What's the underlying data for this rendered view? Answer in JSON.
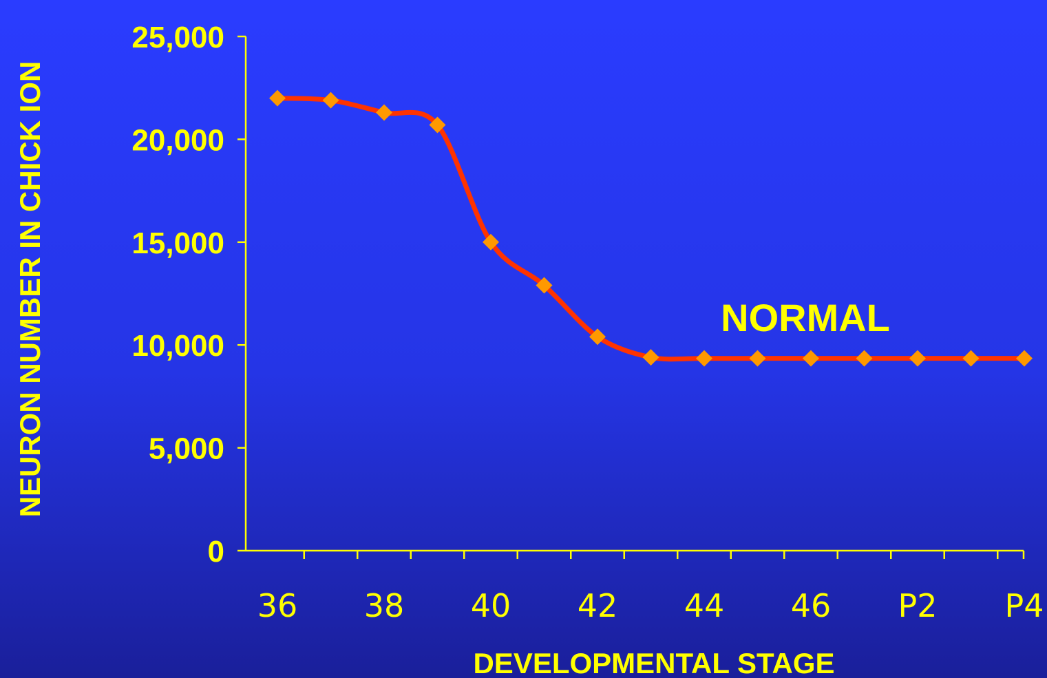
{
  "chart_data": {
    "type": "line",
    "xlabel": "DEVELOPMENTAL STAGE",
    "ylabel": "NEURON NUMBER IN CHICK ION",
    "ylim": [
      0,
      25000
    ],
    "yticks": [
      "0",
      "5,000",
      "10,000",
      "15,000",
      "20,000",
      "25,000"
    ],
    "xticks": [
      "36",
      "38",
      "40",
      "42",
      "44",
      "46",
      "P2",
      "P4"
    ],
    "grid": false,
    "annotation": "NORMAL",
    "x": [
      "36",
      "37",
      "38",
      "39",
      "40",
      "41",
      "42",
      "43",
      "44",
      "45",
      "46",
      "P1",
      "P2",
      "P3",
      "P4"
    ],
    "series": [
      {
        "values": [
          22000,
          21900,
          21300,
          20700,
          15000,
          12900,
          10400,
          9400,
          9350,
          9350,
          9350,
          9350,
          9350,
          9350,
          9350
        ]
      }
    ],
    "colors": {
      "line": "#ff3300",
      "marker": "#ff9900",
      "text": "#ffff00",
      "axis": "#ffff00"
    }
  }
}
